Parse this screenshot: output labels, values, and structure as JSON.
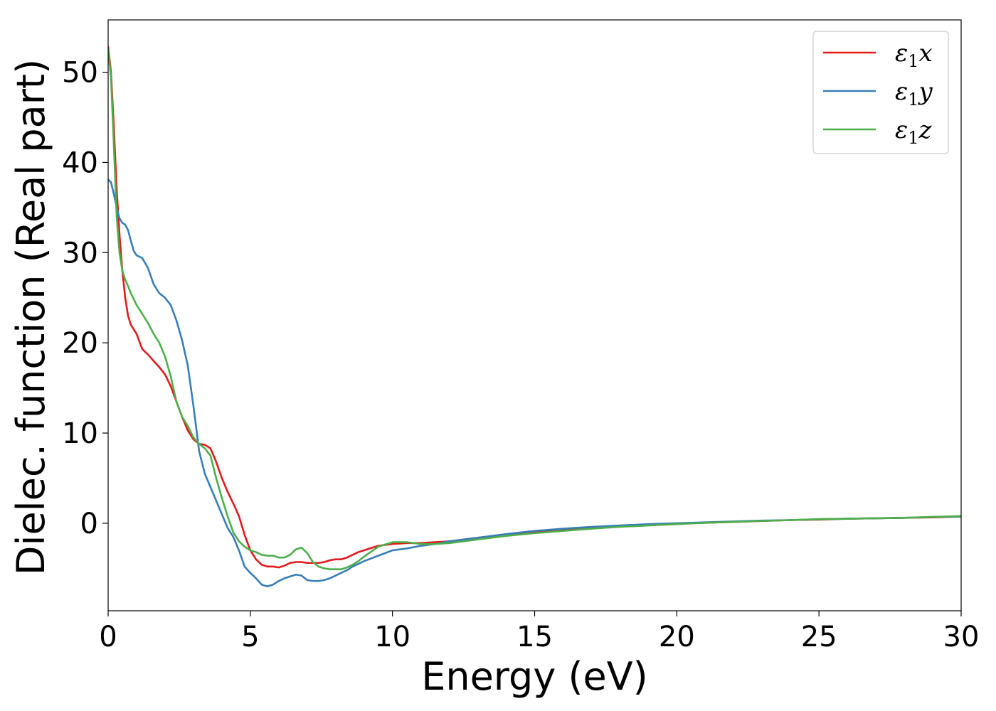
{
  "chart_data": {
    "type": "line",
    "title": "",
    "xlabel": "Energy (eV)",
    "ylabel": "Dielec. function (Real part)",
    "xlim": [
      0,
      30
    ],
    "ylim": [
      -9.7,
      55.8
    ],
    "xticks": [
      0,
      5,
      10,
      15,
      20,
      25,
      30
    ],
    "yticks": [
      0,
      10,
      20,
      30,
      40,
      50
    ],
    "grid": false,
    "legend_position": "top-right",
    "series": [
      {
        "name": "ε₁x",
        "legend_base": "ε",
        "legend_sub": "1",
        "legend_var": "x",
        "color": "#e41a1c",
        "points": [
          [
            0,
            52.8
          ],
          [
            0.1,
            50
          ],
          [
            0.2,
            44
          ],
          [
            0.3,
            37
          ],
          [
            0.4,
            32
          ],
          [
            0.5,
            28
          ],
          [
            0.6,
            25
          ],
          [
            0.7,
            23
          ],
          [
            0.8,
            22
          ],
          [
            1.0,
            21
          ],
          [
            1.2,
            19.3
          ],
          [
            1.4,
            18.7
          ],
          [
            1.6,
            18
          ],
          [
            1.8,
            17.3
          ],
          [
            2.0,
            16.5
          ],
          [
            2.2,
            15.2
          ],
          [
            2.4,
            13.5
          ],
          [
            2.6,
            11.8
          ],
          [
            2.8,
            10.3
          ],
          [
            3.0,
            9.3
          ],
          [
            3.2,
            8.8
          ],
          [
            3.4,
            8.7
          ],
          [
            3.6,
            8.3
          ],
          [
            3.8,
            6.8
          ],
          [
            4.0,
            5
          ],
          [
            4.2,
            3.5
          ],
          [
            4.4,
            2.2
          ],
          [
            4.6,
            0.8
          ],
          [
            4.8,
            -1.3
          ],
          [
            5.0,
            -3
          ],
          [
            5.2,
            -4
          ],
          [
            5.4,
            -4.6
          ],
          [
            5.6,
            -4.8
          ],
          [
            5.8,
            -4.8
          ],
          [
            6.0,
            -4.9
          ],
          [
            6.2,
            -4.7
          ],
          [
            6.4,
            -4.4
          ],
          [
            6.6,
            -4.3
          ],
          [
            6.8,
            -4.3
          ],
          [
            7.0,
            -4.4
          ],
          [
            7.2,
            -4.4
          ],
          [
            7.4,
            -4.4
          ],
          [
            7.6,
            -4.3
          ],
          [
            7.8,
            -4.1
          ],
          [
            8.0,
            -4
          ],
          [
            8.2,
            -4
          ],
          [
            8.4,
            -3.8
          ],
          [
            8.6,
            -3.5
          ],
          [
            8.8,
            -3.2
          ],
          [
            9.0,
            -3
          ],
          [
            9.5,
            -2.5
          ],
          [
            10.0,
            -2.3
          ],
          [
            10.5,
            -2.2
          ],
          [
            11.0,
            -2.2
          ],
          [
            11.5,
            -2.1
          ],
          [
            12.0,
            -2.0
          ],
          [
            13.0,
            -1.6
          ],
          [
            14.0,
            -1.3
          ],
          [
            15.0,
            -1.0
          ],
          [
            16.0,
            -0.75
          ],
          [
            17.0,
            -0.55
          ],
          [
            18.0,
            -0.35
          ],
          [
            19.0,
            -0.2
          ],
          [
            20.0,
            -0.05
          ],
          [
            21.0,
            0.05
          ],
          [
            22.0,
            0.15
          ],
          [
            23.0,
            0.25
          ],
          [
            24.0,
            0.35
          ],
          [
            25.0,
            0.4
          ],
          [
            26.0,
            0.5
          ],
          [
            27.0,
            0.55
          ],
          [
            28.0,
            0.6
          ],
          [
            29.0,
            0.65
          ],
          [
            30.0,
            0.75
          ]
        ]
      },
      {
        "name": "ε₁y",
        "legend_base": "ε",
        "legend_sub": "1",
        "legend_var": "y",
        "color": "#377eb8",
        "points": [
          [
            0,
            38.1
          ],
          [
            0.1,
            37.8
          ],
          [
            0.2,
            36.5
          ],
          [
            0.3,
            35
          ],
          [
            0.4,
            33.8
          ],
          [
            0.5,
            33.3
          ],
          [
            0.6,
            33.1
          ],
          [
            0.7,
            32.5
          ],
          [
            0.8,
            31.3
          ],
          [
            0.9,
            30.2
          ],
          [
            1.0,
            29.7
          ],
          [
            1.2,
            29.4
          ],
          [
            1.4,
            28.3
          ],
          [
            1.6,
            26.5
          ],
          [
            1.8,
            25.5
          ],
          [
            2.0,
            25
          ],
          [
            2.2,
            24.2
          ],
          [
            2.4,
            22.5
          ],
          [
            2.6,
            20.3
          ],
          [
            2.8,
            17.5
          ],
          [
            3.0,
            13
          ],
          [
            3.2,
            8
          ],
          [
            3.4,
            5.5
          ],
          [
            3.6,
            4
          ],
          [
            3.8,
            2.5
          ],
          [
            4.0,
            1
          ],
          [
            4.2,
            -0.5
          ],
          [
            4.4,
            -1.5
          ],
          [
            4.6,
            -3
          ],
          [
            4.8,
            -4.8
          ],
          [
            5.0,
            -5.5
          ],
          [
            5.2,
            -6.1
          ],
          [
            5.4,
            -6.8
          ],
          [
            5.6,
            -7.0
          ],
          [
            5.8,
            -6.8
          ],
          [
            6.0,
            -6.4
          ],
          [
            6.2,
            -6.1
          ],
          [
            6.4,
            -5.9
          ],
          [
            6.6,
            -5.7
          ],
          [
            6.8,
            -5.8
          ],
          [
            7.0,
            -6.3
          ],
          [
            7.2,
            -6.4
          ],
          [
            7.4,
            -6.4
          ],
          [
            7.6,
            -6.3
          ],
          [
            7.8,
            -6.1
          ],
          [
            8.0,
            -5.8
          ],
          [
            8.2,
            -5.5
          ],
          [
            8.4,
            -5.2
          ],
          [
            8.6,
            -4.8
          ],
          [
            8.8,
            -4.5
          ],
          [
            9.0,
            -4.2
          ],
          [
            9.5,
            -3.6
          ],
          [
            10.0,
            -3.0
          ],
          [
            10.5,
            -2.8
          ],
          [
            11.0,
            -2.5
          ],
          [
            11.5,
            -2.3
          ],
          [
            12.0,
            -2.0
          ],
          [
            13.0,
            -1.6
          ],
          [
            14.0,
            -1.2
          ],
          [
            15.0,
            -0.85
          ],
          [
            16.0,
            -0.6
          ],
          [
            17.0,
            -0.4
          ],
          [
            18.0,
            -0.25
          ],
          [
            19.0,
            -0.1
          ],
          [
            20.0,
            0.0
          ],
          [
            21.0,
            0.1
          ],
          [
            22.0,
            0.2
          ],
          [
            23.0,
            0.3
          ],
          [
            24.0,
            0.35
          ],
          [
            25.0,
            0.45
          ],
          [
            26.0,
            0.5
          ],
          [
            27.0,
            0.55
          ],
          [
            28.0,
            0.6
          ],
          [
            29.0,
            0.7
          ],
          [
            30.0,
            0.75
          ]
        ]
      },
      {
        "name": "ε₁z",
        "legend_base": "ε",
        "legend_sub": "1",
        "legend_var": "z",
        "color": "#4daf4a",
        "points": [
          [
            0,
            52.5
          ],
          [
            0.1,
            49.5
          ],
          [
            0.2,
            42
          ],
          [
            0.3,
            34
          ],
          [
            0.4,
            30
          ],
          [
            0.5,
            28
          ],
          [
            0.6,
            27
          ],
          [
            0.7,
            26.3
          ],
          [
            0.8,
            25.5
          ],
          [
            1.0,
            24.2
          ],
          [
            1.2,
            23.2
          ],
          [
            1.4,
            22.2
          ],
          [
            1.6,
            21
          ],
          [
            1.8,
            20
          ],
          [
            2.0,
            18.5
          ],
          [
            2.2,
            16.3
          ],
          [
            2.4,
            13.5
          ],
          [
            2.6,
            11.8
          ],
          [
            2.8,
            10.8
          ],
          [
            3.0,
            9.5
          ],
          [
            3.2,
            8.8
          ],
          [
            3.4,
            8.3
          ],
          [
            3.6,
            7.5
          ],
          [
            3.8,
            5
          ],
          [
            4.0,
            2.8
          ],
          [
            4.2,
            0.8
          ],
          [
            4.4,
            -1
          ],
          [
            4.6,
            -2
          ],
          [
            4.8,
            -2.6
          ],
          [
            5.0,
            -3
          ],
          [
            5.2,
            -3.2
          ],
          [
            5.4,
            -3.5
          ],
          [
            5.6,
            -3.6
          ],
          [
            5.8,
            -3.6
          ],
          [
            6.0,
            -3.8
          ],
          [
            6.2,
            -3.8
          ],
          [
            6.4,
            -3.5
          ],
          [
            6.6,
            -2.9
          ],
          [
            6.8,
            -2.7
          ],
          [
            7.0,
            -3.3
          ],
          [
            7.2,
            -4.3
          ],
          [
            7.4,
            -4.8
          ],
          [
            7.6,
            -5.0
          ],
          [
            7.8,
            -5.1
          ],
          [
            8.0,
            -5.1
          ],
          [
            8.2,
            -5.1
          ],
          [
            8.4,
            -4.9
          ],
          [
            8.6,
            -4.6
          ],
          [
            8.8,
            -4.2
          ],
          [
            9.0,
            -3.7
          ],
          [
            9.5,
            -2.6
          ],
          [
            10.0,
            -2.1
          ],
          [
            10.5,
            -2.1
          ],
          [
            11.0,
            -2.3
          ],
          [
            11.5,
            -2.3
          ],
          [
            12.0,
            -2.2
          ],
          [
            13.0,
            -1.8
          ],
          [
            14.0,
            -1.4
          ],
          [
            15.0,
            -1.1
          ],
          [
            16.0,
            -0.85
          ],
          [
            17.0,
            -0.6
          ],
          [
            18.0,
            -0.4
          ],
          [
            19.0,
            -0.25
          ],
          [
            20.0,
            -0.1
          ],
          [
            21.0,
            0.05
          ],
          [
            22.0,
            0.15
          ],
          [
            23.0,
            0.25
          ],
          [
            24.0,
            0.35
          ],
          [
            25.0,
            0.45
          ],
          [
            26.0,
            0.5
          ],
          [
            27.0,
            0.55
          ],
          [
            28.0,
            0.6
          ],
          [
            29.0,
            0.7
          ],
          [
            30.0,
            0.8
          ]
        ]
      }
    ]
  }
}
